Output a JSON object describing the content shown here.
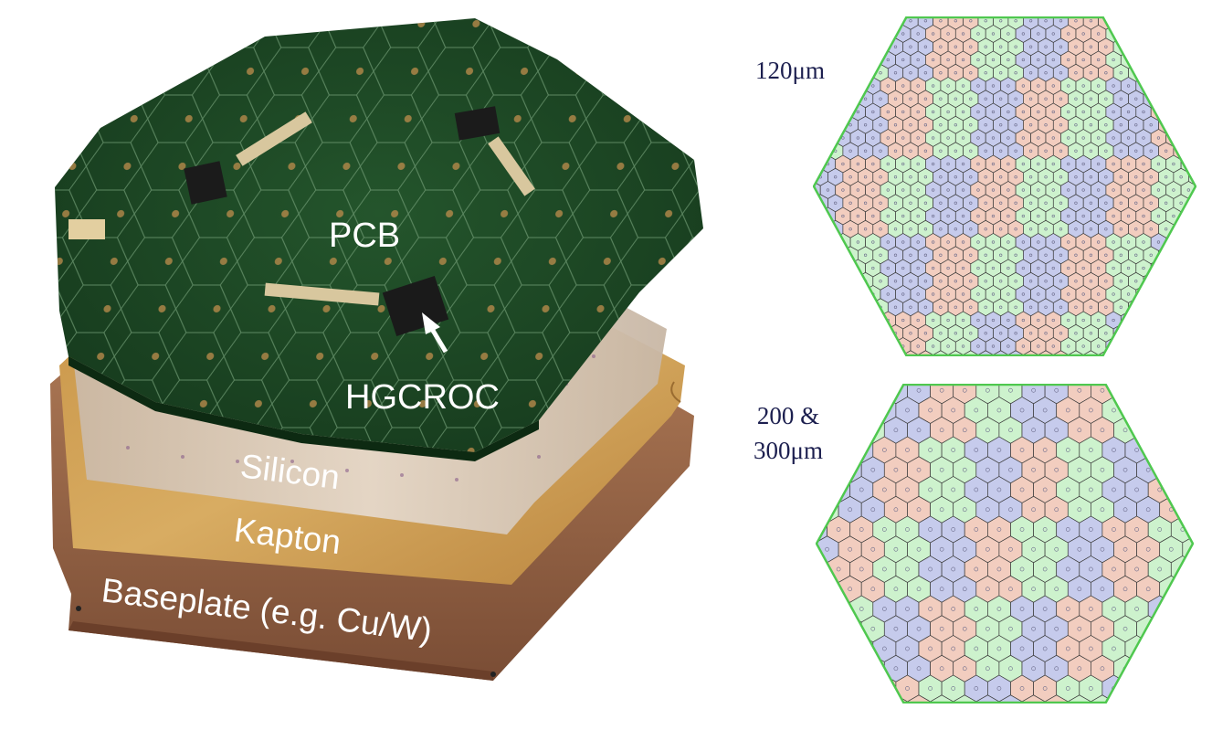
{
  "module": {
    "labels": {
      "pcb": "PCB",
      "hgcroc": "HGCROC",
      "silicon": "Silicon",
      "kapton": "Kapton",
      "baseplate": "Baseplate (e.g. Cu/W)"
    },
    "colors": {
      "pcb": "#1e4a26",
      "pcb_dark": "#123519",
      "silicon": "#d8c9b8",
      "kapton": "#c99a52",
      "baseplate": "#9a6748"
    }
  },
  "wafers": {
    "fine": {
      "label": "120μm"
    },
    "coarse": {
      "label_line1": "200 &",
      "label_line2": "300μm"
    },
    "colors": {
      "red": "#f2cdbf",
      "green": "#cdf2cd",
      "blue": "#c6cbec",
      "outline": "#4fc84f"
    }
  }
}
